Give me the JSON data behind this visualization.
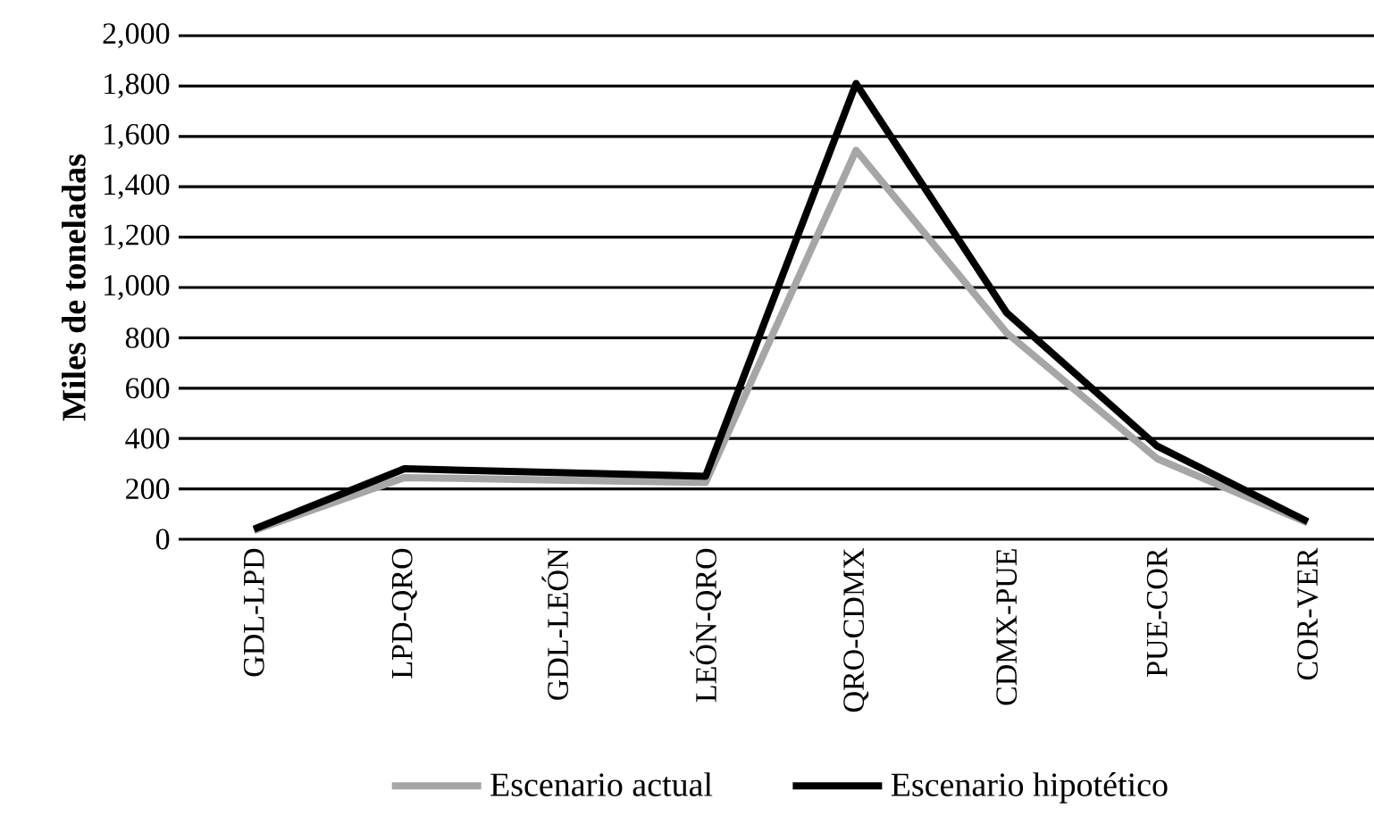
{
  "chart_data": {
    "type": "line",
    "ylabel": "Miles de toneladas",
    "categories": [
      "GDL-LPD",
      "LPD-QRO",
      "GDL-LEÓN",
      "LEÓN-QRO",
      "QRO-CDMX",
      "CDMX-PUE",
      "PUE-COR",
      "COR-VER"
    ],
    "series": [
      {
        "name": "Escenario actual",
        "color": "#a6a6a6",
        "values": [
          35,
          245,
          235,
          225,
          1545,
          820,
          320,
          65
        ]
      },
      {
        "name": "Escenario hipotético",
        "color": "#000000",
        "values": [
          40,
          280,
          265,
          250,
          1810,
          900,
          370,
          70
        ]
      }
    ],
    "ylim": [
      0,
      2000
    ],
    "yticks": [
      {
        "value": 0,
        "label": "0"
      },
      {
        "value": 200,
        "label": "200"
      },
      {
        "value": 400,
        "label": "400"
      },
      {
        "value": 600,
        "label": "600"
      },
      {
        "value": 800,
        "label": "800"
      },
      {
        "value": 1000,
        "label": "1,000"
      },
      {
        "value": 1200,
        "label": "1,200"
      },
      {
        "value": 1400,
        "label": "1,400"
      },
      {
        "value": 1600,
        "label": "1,600"
      },
      {
        "value": 1800,
        "label": "1,800"
      },
      {
        "value": 2000,
        "label": "2,000"
      }
    ],
    "grid": "y",
    "legend": "bottom",
    "line_style": "solid",
    "marker": "none"
  }
}
